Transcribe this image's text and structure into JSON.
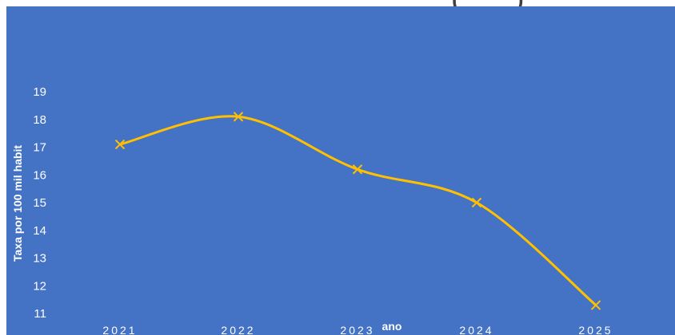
{
  "chart_data": {
    "type": "line",
    "title_fragment": "(          )",
    "xlabel": "ano",
    "ylabel": "Taxa por 100 mil habit",
    "categories": [
      "2021",
      "2022",
      "2023",
      "2024",
      "2025"
    ],
    "series": [
      {
        "values": [
          17.1,
          18.1,
          16.2,
          15.0,
          11.3
        ]
      }
    ],
    "y_ticks": [
      "19",
      "18",
      "17",
      "16",
      "15",
      "14",
      "13",
      "12",
      "11"
    ],
    "ylim": [
      11,
      19
    ],
    "grid": false,
    "legend": "none",
    "line_color": "#ffc000",
    "background_color": "#4472c4",
    "marker": "x",
    "smooth": true
  }
}
